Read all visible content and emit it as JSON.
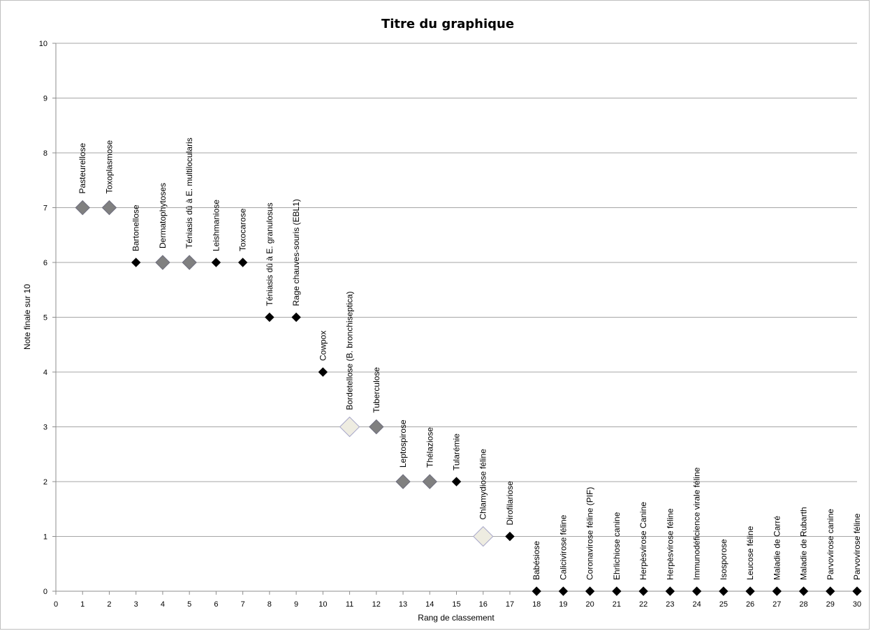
{
  "chart_data": {
    "type": "scatter",
    "title": "Titre du graphique",
    "xlabel": "Rang de classement",
    "ylabel": "Note finale sur 10",
    "xlim": [
      0,
      30
    ],
    "ylim": [
      0,
      10
    ],
    "xticks": [
      "0",
      "1",
      "2",
      "3",
      "4",
      "5",
      "6",
      "7",
      "8",
      "9",
      "10",
      "11",
      "12",
      "13",
      "14",
      "15",
      "16",
      "17",
      "18",
      "19",
      "20",
      "21",
      "22",
      "23",
      "24",
      "25",
      "26",
      "27",
      "28",
      "29",
      "30"
    ],
    "yticks": [
      "0",
      "1",
      "2",
      "3",
      "4",
      "5",
      "6",
      "7",
      "8",
      "9",
      "10"
    ],
    "grid": true,
    "marker_colors": {
      "grey": "#808080",
      "black": "#000000",
      "light": "#eeece1"
    },
    "points": [
      {
        "x": 1,
        "y": 7,
        "label": "Pasteurellose",
        "marker": "grey"
      },
      {
        "x": 2,
        "y": 7,
        "label": "Toxoplasmose",
        "marker": "grey"
      },
      {
        "x": 3,
        "y": 6,
        "label": "Bartonellose",
        "marker": "black"
      },
      {
        "x": 4,
        "y": 6,
        "label": "Dermatophytoses",
        "marker": "grey"
      },
      {
        "x": 5,
        "y": 6,
        "label": "Téniasis dû à E. multilocularis",
        "marker": "grey"
      },
      {
        "x": 6,
        "y": 6,
        "label": "Leishmaniose",
        "marker": "black"
      },
      {
        "x": 7,
        "y": 6,
        "label": "Toxocarose",
        "marker": "black"
      },
      {
        "x": 8,
        "y": 5,
        "label": "Téniasis dû à E. granulosus",
        "marker": "black"
      },
      {
        "x": 9,
        "y": 5,
        "label": "Rage chauves-souris (EBL1)",
        "marker": "black"
      },
      {
        "x": 10,
        "y": 4,
        "label": "Cowpox",
        "marker": "black"
      },
      {
        "x": 11,
        "y": 3,
        "label": "Bordetellose (B. bronchiseptica)",
        "marker": "light"
      },
      {
        "x": 12,
        "y": 3,
        "label": "Tuberculose",
        "marker": "grey"
      },
      {
        "x": 13,
        "y": 2,
        "label": "Leptospirose",
        "marker": "grey"
      },
      {
        "x": 14,
        "y": 2,
        "label": "Thélaziose",
        "marker": "grey"
      },
      {
        "x": 15,
        "y": 2,
        "label": "Tularémie",
        "marker": "black"
      },
      {
        "x": 16,
        "y": 1,
        "label": "Chlamydiose féline",
        "marker": "light"
      },
      {
        "x": 17,
        "y": 1,
        "label": "Dirofilariose",
        "marker": "black"
      },
      {
        "x": 18,
        "y": 0,
        "label": "Babésiose",
        "marker": "black"
      },
      {
        "x": 19,
        "y": 0,
        "label": "Calicivirose féline",
        "marker": "black"
      },
      {
        "x": 20,
        "y": 0,
        "label": "Coronavirose féline (PIF)",
        "marker": "black"
      },
      {
        "x": 21,
        "y": 0,
        "label": "Ehrlichiose canine",
        "marker": "black"
      },
      {
        "x": 22,
        "y": 0,
        "label": "Herpèsvirose Canine",
        "marker": "black"
      },
      {
        "x": 23,
        "y": 0,
        "label": "Herpèsvirose féline",
        "marker": "black"
      },
      {
        "x": 24,
        "y": 0,
        "label": "Immunodéficience virale féline",
        "marker": "black"
      },
      {
        "x": 25,
        "y": 0,
        "label": "Isosporose",
        "marker": "black"
      },
      {
        "x": 26,
        "y": 0,
        "label": "Leucose féline",
        "marker": "black"
      },
      {
        "x": 27,
        "y": 0,
        "label": "Maladie de Carré",
        "marker": "black"
      },
      {
        "x": 28,
        "y": 0,
        "label": "Maladie de Rubarth",
        "marker": "black"
      },
      {
        "x": 29,
        "y": 0,
        "label": "Parvovirose canine",
        "marker": "black"
      },
      {
        "x": 30,
        "y": 0,
        "label": "Parvovirose féline",
        "marker": "black"
      }
    ]
  }
}
